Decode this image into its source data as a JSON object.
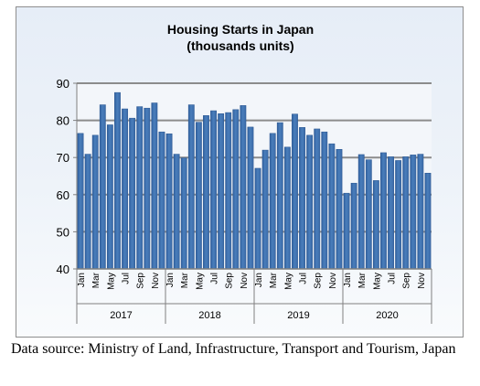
{
  "chart_data": {
    "type": "bar",
    "title": "Housing Starts in Japan",
    "subtitle": "(thousands units)",
    "xlabel": "",
    "ylabel": "",
    "ylim": [
      40,
      90
    ],
    "yticks": [
      40,
      50,
      60,
      70,
      80,
      90
    ],
    "grid": true,
    "legend": "none",
    "month_labels": [
      "Jan",
      "Mar",
      "May",
      "Jul",
      "Sep",
      "Nov"
    ],
    "years": [
      "2017",
      "2018",
      "2019",
      "2020"
    ],
    "categories": [
      "2017-01",
      "2017-02",
      "2017-03",
      "2017-04",
      "2017-05",
      "2017-06",
      "2017-07",
      "2017-08",
      "2017-09",
      "2017-10",
      "2017-11",
      "2017-12",
      "2018-01",
      "2018-02",
      "2018-03",
      "2018-04",
      "2018-05",
      "2018-06",
      "2018-07",
      "2018-08",
      "2018-09",
      "2018-10",
      "2018-11",
      "2018-12",
      "2019-01",
      "2019-02",
      "2019-03",
      "2019-04",
      "2019-05",
      "2019-06",
      "2019-07",
      "2019-08",
      "2019-09",
      "2019-10",
      "2019-11",
      "2019-12",
      "2020-01",
      "2020-02",
      "2020-03",
      "2020-04",
      "2020-05",
      "2020-06",
      "2020-07",
      "2020-08",
      "2020-09",
      "2020-10",
      "2020-11",
      "2020-12"
    ],
    "values": [
      76.5,
      70.9,
      76.0,
      84.2,
      78.8,
      87.5,
      83.1,
      80.6,
      83.7,
      83.3,
      84.7,
      76.9,
      76.4,
      70.9,
      69.9,
      84.2,
      79.5,
      81.3,
      82.6,
      81.8,
      82.1,
      82.9,
      84.0,
      78.2,
      67.1,
      72.0,
      76.5,
      79.4,
      72.8,
      81.7,
      78.1,
      76.0,
      77.7,
      76.9,
      73.7,
      72.2,
      60.4,
      63.1,
      70.8,
      69.4,
      63.8,
      71.3,
      70.2,
      69.2,
      70.2,
      70.7,
      70.9,
      65.8
    ],
    "bar_color": "#4a7ebb"
  },
  "caption": "Data source: Ministry of Land, Infrastructure, Transport and Tourism, Japan"
}
